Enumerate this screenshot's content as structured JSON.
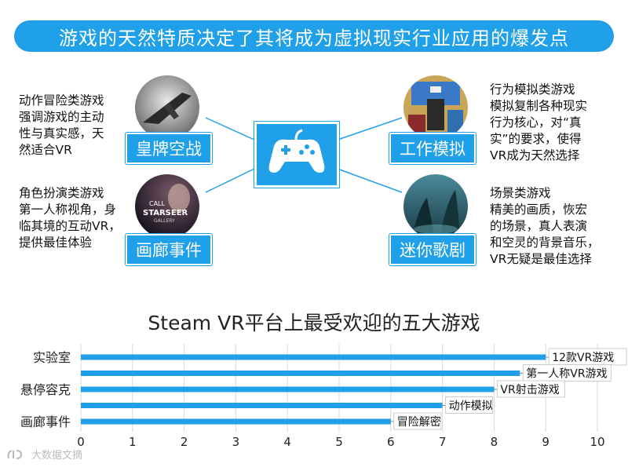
{
  "banner": {
    "title": "游戏的天然特质决定了其将成为虚拟现实行业应用的爆发点"
  },
  "quadrants": {
    "top_left": {
      "label": "皇牌空战",
      "desc": "动作冒险类游戏\n强调游戏的主动\n性与真实感，天\n然适合VR"
    },
    "bottom_left": {
      "label": "画廊事件",
      "desc": "角色扮演类游戏\n第一人称视角，身\n临其境的互动VR，\n提供最佳体验",
      "thumb_text": [
        "CALL",
        "STARSEER",
        "GALLERY"
      ]
    },
    "top_right": {
      "label": "工作模拟",
      "desc": "行为模拟类游戏\n模拟复制各种现实\n行为核心，对“真\n实”的要求，使得\nVR成为天然选择"
    },
    "bottom_right": {
      "label": "迷你歌剧",
      "desc": "场景类游戏\n精美的画质，恢宏\n的场景，真人表演\n和空灵的背景音乐，\nVR无疑是最佳选择"
    }
  },
  "colors": {
    "accent": "#1fa0e8",
    "bar": "#1fa0e8",
    "grid": "#d9d9d9"
  },
  "icons": {
    "center": "gamepad-icon",
    "watermark": "logo-mark"
  },
  "chart_data": {
    "type": "bar",
    "orientation": "horizontal",
    "title": "Steam VR平台上最受欢迎的五大游戏",
    "xlim": [
      0,
      10
    ],
    "xticks": [
      0,
      1,
      2,
      3,
      4,
      5,
      6,
      7,
      8,
      9,
      10
    ],
    "grid": true,
    "categories": [
      "实验室",
      "",
      "悬停容克",
      "",
      "画廊事件"
    ],
    "values": [
      9,
      8.5,
      8,
      7,
      6
    ],
    "annotations": [
      "12款VR游戏",
      "第一人称VR游戏",
      "VR射击游戏",
      "动作模拟",
      "冒险解密"
    ]
  },
  "watermark": {
    "text": "大数据文摘"
  }
}
